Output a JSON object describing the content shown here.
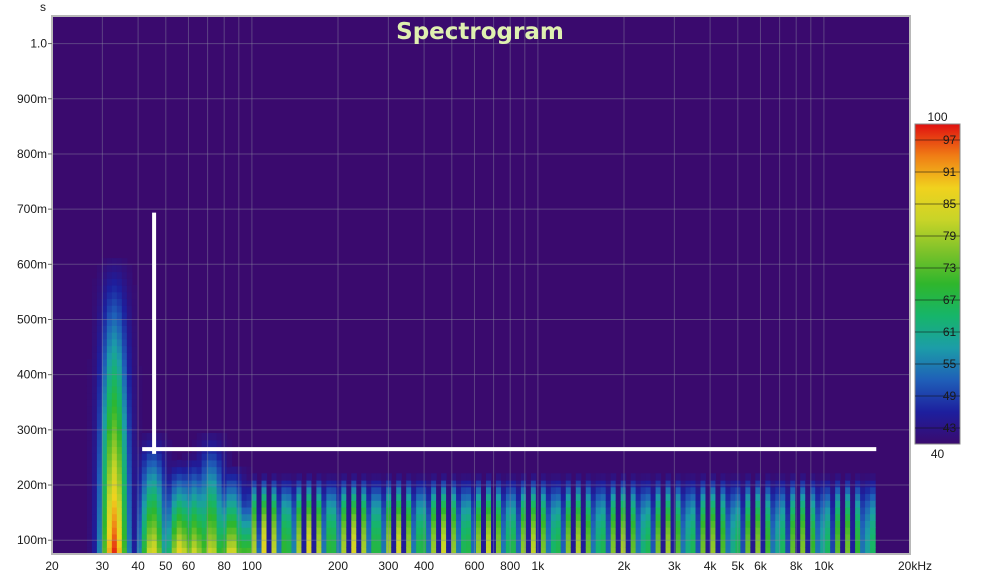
{
  "chart_data": {
    "type": "heatmap",
    "title": "Spectrogram",
    "ylabel": "s",
    "xlabel": "",
    "x_scale": "log",
    "xlim": [
      20,
      20000
    ],
    "ylim": [
      0.075,
      1.05
    ],
    "x_ticks": [
      {
        "value": 20,
        "label": "20"
      },
      {
        "value": 30,
        "label": "30"
      },
      {
        "value": 40,
        "label": "40"
      },
      {
        "value": 50,
        "label": "50"
      },
      {
        "value": 60,
        "label": "60"
      },
      {
        "value": 80,
        "label": "80"
      },
      {
        "value": 100,
        "label": "100"
      },
      {
        "value": 200,
        "label": "200"
      },
      {
        "value": 300,
        "label": "300"
      },
      {
        "value": 400,
        "label": "400"
      },
      {
        "value": 600,
        "label": "600"
      },
      {
        "value": 800,
        "label": "800"
      },
      {
        "value": 1000,
        "label": "1k"
      },
      {
        "value": 2000,
        "label": "2k"
      },
      {
        "value": 3000,
        "label": "3k"
      },
      {
        "value": 4000,
        "label": "4k"
      },
      {
        "value": 5000,
        "label": "5k"
      },
      {
        "value": 6000,
        "label": "6k"
      },
      {
        "value": 8000,
        "label": "8k"
      },
      {
        "value": 10000,
        "label": "10k"
      },
      {
        "value": 20000,
        "label": "20kHz"
      }
    ],
    "y_ticks": [
      {
        "value": 0.1,
        "label": "100m"
      },
      {
        "value": 0.2,
        "label": "200m"
      },
      {
        "value": 0.3,
        "label": "300m"
      },
      {
        "value": 0.4,
        "label": "400m"
      },
      {
        "value": 0.5,
        "label": "500m"
      },
      {
        "value": 0.6,
        "label": "600m"
      },
      {
        "value": 0.7,
        "label": "700m"
      },
      {
        "value": 0.8,
        "label": "800m"
      },
      {
        "value": 0.9,
        "label": "900m"
      },
      {
        "value": 1.0,
        "label": "1.0"
      }
    ],
    "colorbar": {
      "min": 40,
      "max": 100,
      "ticks": [
        {
          "value": 100,
          "label": "100"
        },
        {
          "value": 97,
          "label": "97"
        },
        {
          "value": 91,
          "label": "91"
        },
        {
          "value": 85,
          "label": "85"
        },
        {
          "value": 79,
          "label": "79"
        },
        {
          "value": 73,
          "label": "73"
        },
        {
          "value": 67,
          "label": "67"
        },
        {
          "value": 61,
          "label": "61"
        },
        {
          "value": 55,
          "label": "55"
        },
        {
          "value": 49,
          "label": "49"
        },
        {
          "value": 43,
          "label": "43"
        },
        {
          "value": 40,
          "label": "40"
        }
      ],
      "stops": [
        {
          "value": 40,
          "color": "#3a0a6e"
        },
        {
          "value": 46,
          "color": "#1d1f9e"
        },
        {
          "value": 52,
          "color": "#1f5fb8"
        },
        {
          "value": 58,
          "color": "#1c9da8"
        },
        {
          "value": 64,
          "color": "#16b56a"
        },
        {
          "value": 70,
          "color": "#2fb62c"
        },
        {
          "value": 76,
          "color": "#7cc22a"
        },
        {
          "value": 82,
          "color": "#c8d428"
        },
        {
          "value": 88,
          "color": "#f0d21e"
        },
        {
          "value": 94,
          "color": "#f07e15"
        },
        {
          "value": 100,
          "color": "#e01010"
        }
      ]
    },
    "background_color": "#3a0a6e",
    "grid": true,
    "floor_db": 40,
    "base_time_s": 0.075,
    "peaks": [
      {
        "freq_hz": 33,
        "peak_db": 99,
        "decay_time_s": 0.62
      },
      {
        "freq_hz": 45,
        "peak_db": 86,
        "decay_time_s": 0.3
      },
      {
        "freq_hz": 56,
        "peak_db": 88,
        "decay_time_s": 0.25
      },
      {
        "freq_hz": 63,
        "peak_db": 84,
        "decay_time_s": 0.26
      },
      {
        "freq_hz": 72,
        "peak_db": 84,
        "decay_time_s": 0.3
      },
      {
        "freq_hz": 85,
        "peak_db": 86,
        "decay_time_s": 0.24
      },
      {
        "freq_hz": 96,
        "peak_db": 74,
        "decay_time_s": 0.2
      }
    ],
    "tail_decay_time_s": 0.22,
    "annotations": [
      {
        "type": "line",
        "x": [
          45.5,
          45.5
        ],
        "y": [
          0.26,
          0.69
        ],
        "color": "#ffffff"
      },
      {
        "type": "line",
        "x": [
          42,
          15000
        ],
        "y": [
          0.265,
          0.265
        ],
        "color": "#ffffff"
      }
    ]
  }
}
